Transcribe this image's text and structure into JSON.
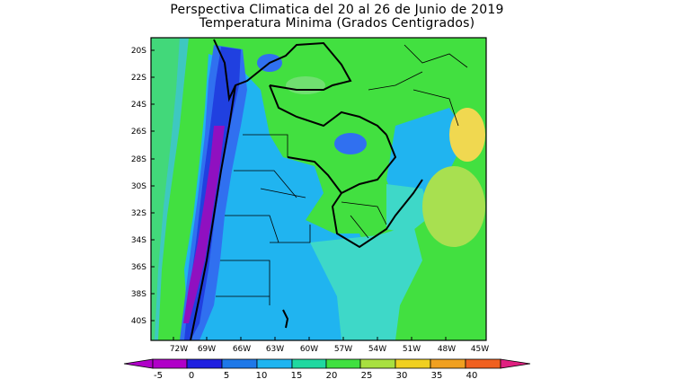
{
  "header": {
    "title": "Perspectiva Climatica del 20 al 26 de Junio de 2019",
    "subtitle": "Temperatura Minima (Grados Centigrados)"
  },
  "axes": {
    "lat_labels": [
      "20S",
      "22S",
      "24S",
      "26S",
      "28S",
      "30S",
      "32S",
      "34S",
      "36S",
      "38S",
      "40S"
    ],
    "lon_labels": [
      "72W",
      "69W",
      "66W",
      "63W",
      "60W",
      "57W",
      "54W",
      "51W",
      "48W",
      "45W"
    ]
  },
  "colorbar": {
    "labels": [
      "-5",
      "0",
      "5",
      "10",
      "15",
      "20",
      "25",
      "30",
      "35",
      "40"
    ],
    "colors": [
      "#b000c8",
      "#2020e0",
      "#1e78e8",
      "#1eb4f0",
      "#20d8a0",
      "#40e040",
      "#a8e040",
      "#f0d020",
      "#f0a020",
      "#f06020",
      "#e02080"
    ]
  },
  "colors": {
    "ocean_cool": "#3ec8c0",
    "land_warm": "#42e040",
    "cold_band": "#3070f0",
    "frozen": "#9010c0"
  }
}
